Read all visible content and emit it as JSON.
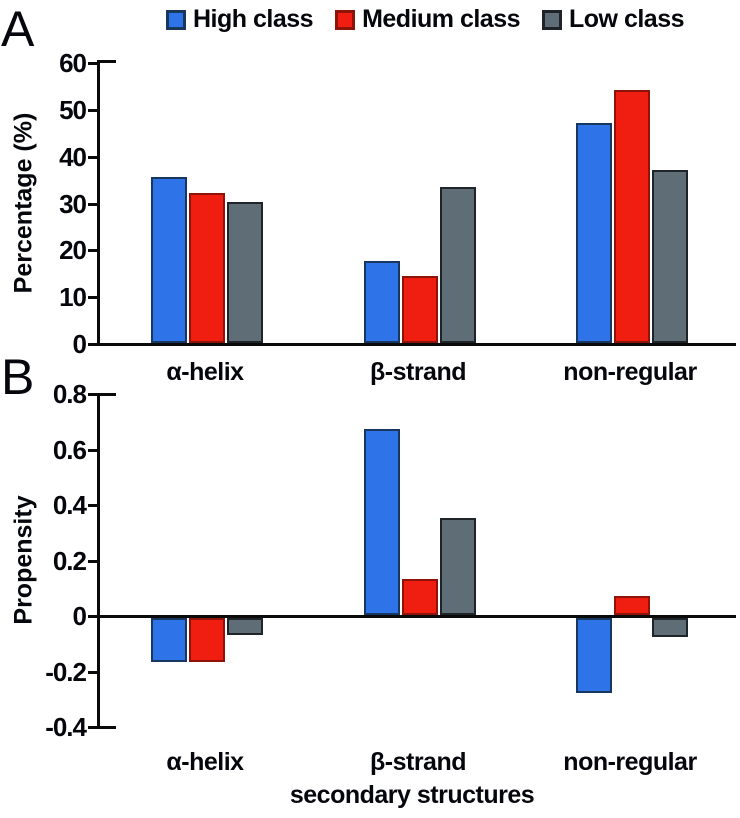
{
  "panel_a": {
    "letter": "A"
  },
  "panel_b": {
    "letter": "B"
  },
  "legend": {
    "items": [
      {
        "label": "High class",
        "color": "#2E74E8",
        "border": "#17375E"
      },
      {
        "label": "Medium class",
        "color": "#F01D11",
        "border": "#8E1409"
      },
      {
        "label": "Low class",
        "color": "#5F6D77",
        "border": "#1F2428"
      }
    ]
  },
  "colors": {
    "axis": "#0a0a0a",
    "text": "#06070c",
    "high_class": "#2E74E8",
    "medium_class": "#F01D11",
    "low_class": "#5F6D77"
  },
  "chart_data": [
    {
      "type": "bar",
      "panel": "A",
      "ylabel": "Percentage (%)",
      "xlabel": "",
      "categories": [
        "α-helix",
        "β-strand",
        "non-regular"
      ],
      "series": [
        {
          "name": "High class",
          "values": [
            35.5,
            17.5,
            47
          ]
        },
        {
          "name": "Medium class",
          "values": [
            32,
            14.3,
            54
          ]
        },
        {
          "name": "Low class",
          "values": [
            30,
            33.3,
            37
          ]
        }
      ],
      "ylim": [
        0,
        60
      ],
      "ytick_values": [
        60,
        50,
        40,
        30,
        20,
        10,
        0
      ],
      "ytick_labels": [
        "60",
        "50",
        "40",
        "30",
        "20",
        "10",
        "0"
      ],
      "grid": false,
      "legend_position": "top"
    },
    {
      "type": "bar",
      "panel": "B",
      "ylabel": "Propensity",
      "xlabel": "secondary structures",
      "categories": [
        "α-helix",
        "β-strand",
        "non-regular"
      ],
      "series": [
        {
          "name": "High class",
          "values": [
            -0.16,
            0.67,
            -0.27
          ]
        },
        {
          "name": "Medium class",
          "values": [
            -0.16,
            0.13,
            0.07
          ]
        },
        {
          "name": "Low class",
          "values": [
            -0.06,
            0.35,
            -0.07
          ]
        }
      ],
      "ylim": [
        -0.4,
        0.8
      ],
      "ytick_values": [
        0.8,
        0.6,
        0.4,
        0.2,
        0,
        -0.2,
        -0.4
      ],
      "ytick_labels": [
        "0.8",
        "0.6",
        "0.4",
        "0.2",
        "0",
        "-0.2",
        "-0.4"
      ],
      "grid": false,
      "legend_position": "none"
    }
  ]
}
